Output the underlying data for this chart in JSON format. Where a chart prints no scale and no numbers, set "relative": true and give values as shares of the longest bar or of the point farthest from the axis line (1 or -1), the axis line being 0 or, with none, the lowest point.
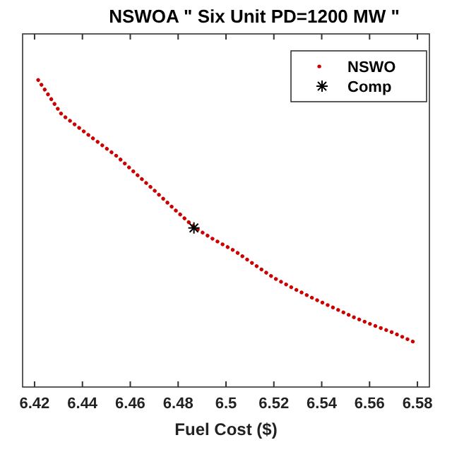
{
  "chart_data": {
    "type": "scatter",
    "title": "NSWOA \" Six Unit PD=1200 MW \"",
    "xlabel": "Fuel Cost ($)",
    "relative": true,
    "xlim": [
      6.415,
      6.585
    ],
    "xticks": [
      6.42,
      6.44,
      6.46,
      6.48,
      6.5,
      6.52,
      6.54,
      6.56,
      6.58
    ],
    "legend": "top right",
    "grid": false,
    "series": [
      {
        "name": "NSWO",
        "type": "line",
        "line_style": "dotted",
        "color": "#cc0000",
        "x": [
          6.4215,
          6.4313,
          6.443,
          6.4545,
          6.463,
          6.4708,
          6.479,
          6.4871,
          6.495,
          6.5039,
          6.512,
          6.5201,
          6.528,
          6.5364,
          6.545,
          6.5532,
          6.561,
          6.5695,
          6.5784
        ],
        "values": [
          1.0,
          0.888,
          0.818,
          0.751,
          0.69,
          0.635,
          0.575,
          0.518,
          0.48,
          0.442,
          0.398,
          0.355,
          0.322,
          0.289,
          0.258,
          0.228,
          0.203,
          0.178,
          0.147
        ]
      },
      {
        "name": "Comp",
        "color": "#000000",
        "marker": "cross",
        "x": [
          6.4866
        ],
        "values": [
          0.518
        ]
      }
    ]
  }
}
